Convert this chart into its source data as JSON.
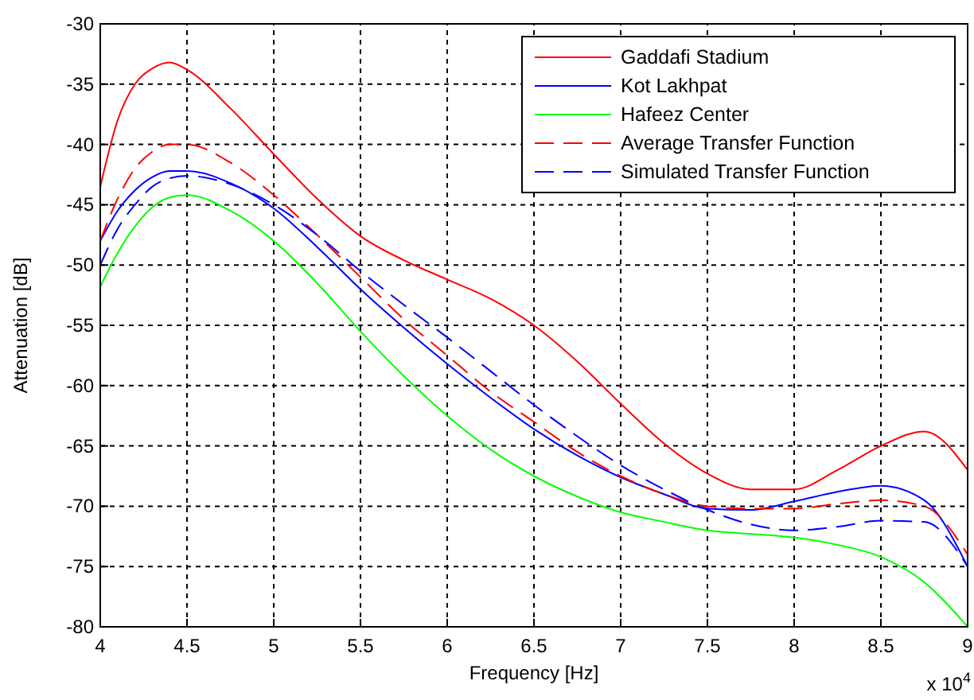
{
  "chart_data": {
    "type": "line",
    "xlabel": "Frequency [Hz]",
    "ylabel": "Attenuation [dB]",
    "x": [
      4,
      4.1,
      4.2,
      4.3,
      4.4,
      4.5,
      4.75,
      5,
      5.25,
      5.5,
      5.75,
      6,
      6.25,
      6.5,
      6.75,
      7,
      7.25,
      7.5,
      7.75,
      8,
      8.25,
      8.5,
      8.75,
      9
    ],
    "xlim": [
      4,
      9
    ],
    "xticks": [
      4,
      4.5,
      5,
      5.5,
      6,
      6.5,
      7,
      7.5,
      8,
      8.5,
      9
    ],
    "ylim": [
      -80,
      -30
    ],
    "yticks": [
      -80,
      -75,
      -70,
      -65,
      -60,
      -55,
      -50,
      -45,
      -40,
      -35,
      -30
    ],
    "grid": true,
    "legend": "top right",
    "marker": "none",
    "annotations": [
      "x 10$^{4}$"
    ],
    "series": [
      {
        "name": "Gaddafi Stadium",
        "color": "#ff0000",
        "line_style": "solid",
        "values": [
          -43.5,
          -38,
          -35,
          -33.7,
          -33.2,
          -33.8,
          -37,
          -40.8,
          -44.5,
          -47.6,
          -49.6,
          -51.2,
          -52.8,
          -55,
          -58,
          -61.5,
          -64.8,
          -67.3,
          -68.6,
          -68.6,
          -67,
          -65,
          -63.8,
          -67
        ]
      },
      {
        "name": "Kot Lakhpat",
        "color": "#0000ff",
        "line_style": "solid",
        "values": [
          -48,
          -45.5,
          -43.8,
          -42.7,
          -42.2,
          -42.2,
          -43.2,
          -45.3,
          -48.5,
          -52,
          -55.2,
          -58.2,
          -61,
          -63.6,
          -65.8,
          -67.6,
          -69,
          -70.2,
          -70.3,
          -69.6,
          -68.8,
          -68.3,
          -69.5,
          -75
        ]
      },
      {
        "name": "Hafeez Center",
        "color": "#00ff00",
        "line_style": "solid",
        "values": [
          -51.8,
          -49,
          -46.8,
          -45.2,
          -44.4,
          -44.2,
          -45.5,
          -48,
          -51.5,
          -55.5,
          -59.2,
          -62.5,
          -65.3,
          -67.5,
          -69.2,
          -70.5,
          -71.3,
          -72,
          -72.3,
          -72.6,
          -73.2,
          -74.2,
          -76.3,
          -80
        ]
      },
      {
        "name": "Average Transfer Function",
        "color": "#ff0000",
        "line_style": "dashed",
        "values": [
          -48,
          -44.5,
          -42,
          -40.6,
          -40,
          -40,
          -41.5,
          -44.2,
          -47.5,
          -51,
          -54.5,
          -57.5,
          -60.5,
          -63,
          -65.5,
          -67.5,
          -69,
          -70,
          -70.2,
          -70.2,
          -69.8,
          -69.5,
          -70,
          -74
        ]
      },
      {
        "name": "Simulated Transfer Function",
        "color": "#0000ff",
        "line_style": "dashed",
        "values": [
          -50,
          -47,
          -45,
          -43.5,
          -42.8,
          -42.6,
          -43.3,
          -45,
          -47.5,
          -50.5,
          -53.3,
          -56,
          -58.8,
          -61.6,
          -64.2,
          -66.6,
          -68.6,
          -70.3,
          -71.5,
          -72,
          -71.7,
          -71.2,
          -71.3,
          -75
        ]
      }
    ]
  }
}
